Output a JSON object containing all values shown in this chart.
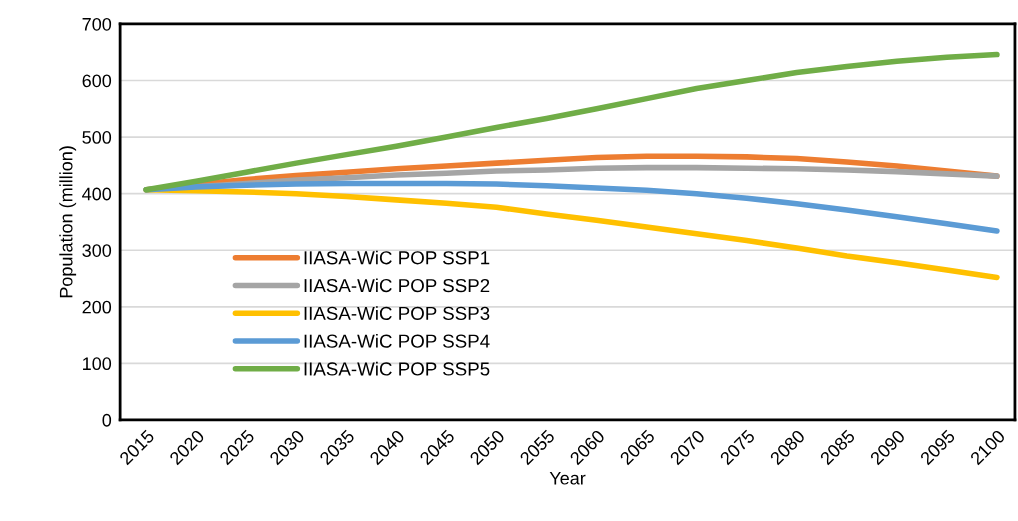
{
  "chart_data": {
    "type": "line",
    "xlabel": "Year",
    "ylabel": "Population (million)",
    "x": [
      2015,
      2020,
      2025,
      2030,
      2035,
      2040,
      2045,
      2050,
      2055,
      2060,
      2065,
      2070,
      2075,
      2080,
      2085,
      2090,
      2095,
      2100
    ],
    "series": [
      {
        "name": "IIASA-WiC POP SSP1",
        "color": "#ed7d31",
        "values": [
          407,
          416,
          425,
          432,
          438,
          444,
          449,
          454,
          459,
          464,
          466,
          466,
          465,
          462,
          456,
          449,
          440,
          431
        ]
      },
      {
        "name": "IIASA-WiC POP SSP2",
        "color": "#a5a5a5",
        "values": [
          407,
          412,
          418,
          424,
          428,
          433,
          436,
          440,
          442,
          445,
          446,
          446,
          445,
          444,
          442,
          439,
          435,
          431
        ]
      },
      {
        "name": "IIASA-WiC POP SSP3",
        "color": "#ffc000",
        "values": [
          407,
          405,
          403,
          400,
          395,
          389,
          383,
          376,
          364,
          353,
          341,
          329,
          317,
          304,
          290,
          278,
          265,
          252
        ]
      },
      {
        "name": "IIASA-WiC POP SSP4",
        "color": "#5b9bd5",
        "values": [
          407,
          412,
          415,
          417,
          418,
          418,
          418,
          417,
          414,
          410,
          406,
          400,
          392,
          382,
          371,
          359,
          347,
          334
        ]
      },
      {
        "name": "IIASA-WiC POP SSP5",
        "color": "#70ad47",
        "values": [
          407,
          422,
          438,
          454,
          469,
          484,
          500,
          517,
          533,
          550,
          568,
          586,
          600,
          614,
          625,
          634,
          641,
          646
        ]
      }
    ],
    "xlim": [
      2012.4,
      2101.8
    ],
    "xticks": [
      2015,
      2020,
      2025,
      2030,
      2035,
      2040,
      2045,
      2050,
      2055,
      2060,
      2065,
      2070,
      2075,
      2080,
      2085,
      2090,
      2095,
      2100
    ],
    "ylim": [
      0,
      700
    ],
    "yticks": [
      0,
      100,
      200,
      300,
      400,
      500,
      600,
      700
    ],
    "grid": "y",
    "legend": "bottom left",
    "marker": "none",
    "line_style": "solid"
  }
}
